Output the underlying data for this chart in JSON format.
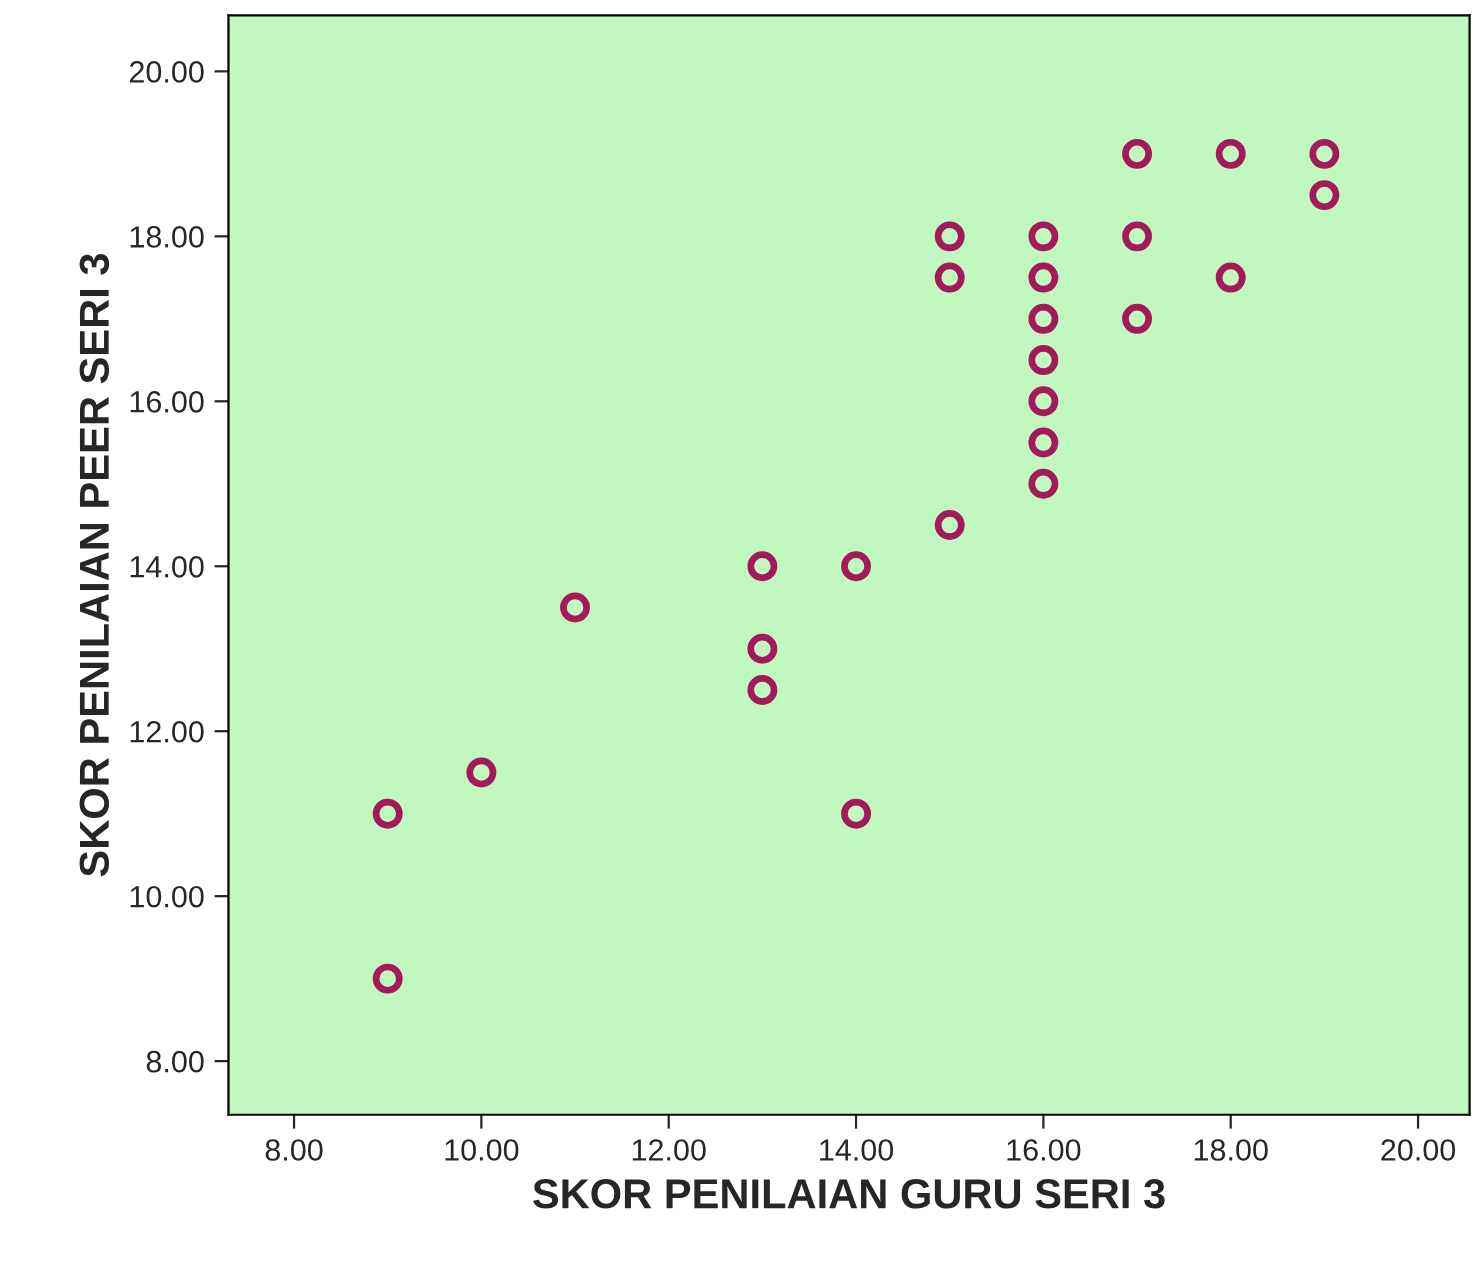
{
  "chart_data": {
    "type": "scatter",
    "xlabel": "SKOR PENILAIAN GURU SERI 3",
    "ylabel": "SKOR PENILAIAN PEER SERI 3",
    "x": [
      9,
      9,
      10,
      11,
      13,
      13,
      13,
      14,
      14,
      15,
      15,
      15,
      16,
      16,
      16,
      16,
      16,
      16,
      16,
      17,
      17,
      17,
      18,
      18,
      19,
      19
    ],
    "series": [
      {
        "color": "#a3195b",
        "values": [
          11,
          9,
          11.5,
          13.5,
          14,
          13,
          12.5,
          14,
          11,
          18,
          17.5,
          14.5,
          18,
          17.5,
          17,
          16.5,
          16,
          15.5,
          15,
          19,
          18,
          17,
          19,
          17.5,
          19,
          18.5
        ]
      }
    ],
    "marker": "circle",
    "grid": false,
    "legend": false,
    "xlim": [
      7.3,
      20.55
    ],
    "ylim": [
      7.35,
      20.68
    ],
    "xticks": [
      {
        "value": 8,
        "label": "8.00"
      },
      {
        "value": 10,
        "label": "10.00"
      },
      {
        "value": 12,
        "label": "12.00"
      },
      {
        "value": 14,
        "label": "14.00"
      },
      {
        "value": 16,
        "label": "16.00"
      },
      {
        "value": 18,
        "label": "18.00"
      },
      {
        "value": 20,
        "label": "20.00"
      }
    ],
    "yticks": [
      {
        "value": 8,
        "label": "8.00"
      },
      {
        "value": 10,
        "label": "10.00"
      },
      {
        "value": 12,
        "label": "12.00"
      },
      {
        "value": 14,
        "label": "14.00"
      },
      {
        "value": 16,
        "label": "16.00"
      },
      {
        "value": 18,
        "label": "18.00"
      },
      {
        "value": 20,
        "label": "20.00"
      }
    ]
  }
}
